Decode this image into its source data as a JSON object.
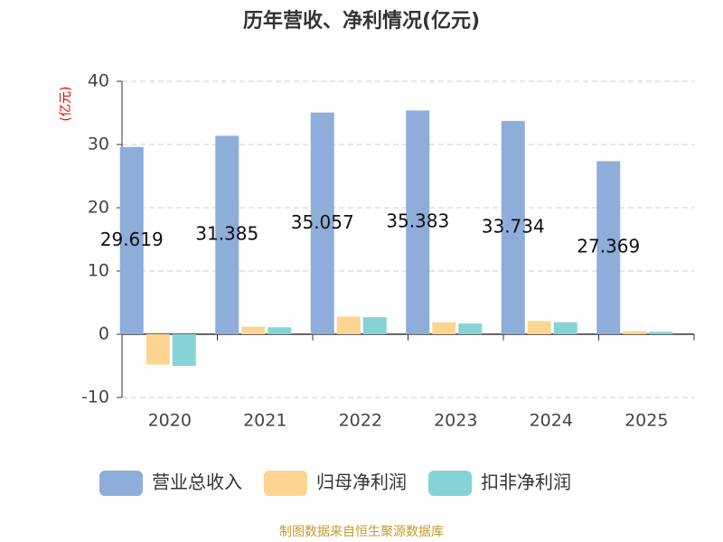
{
  "chart_data": {
    "type": "bar",
    "title": "历年营收、净利情况(亿元)",
    "y_label": "(亿元)",
    "categories": [
      "2020",
      "2021",
      "2022",
      "2023",
      "2024",
      "2025"
    ],
    "series": [
      {
        "name": "营业总收入",
        "color": "#8eadd9",
        "values": [
          29.619,
          31.385,
          35.057,
          35.383,
          33.734,
          27.369
        ]
      },
      {
        "name": "归母净利润",
        "color": "#fdd592",
        "values": [
          -4.8,
          1.2,
          2.8,
          1.9,
          2.1,
          0.5
        ]
      },
      {
        "name": "扣非净利润",
        "color": "#86d3d6",
        "values": [
          -5.0,
          1.1,
          2.7,
          1.7,
          1.9,
          0.4
        ]
      }
    ],
    "data_labels_series": 0,
    "ylim": [
      -10,
      40
    ],
    "yticks": [
      -10,
      0,
      10,
      20,
      30,
      40
    ],
    "grid": true,
    "legend": "bottom",
    "source": "制图数据来自恒生聚源数据库"
  }
}
